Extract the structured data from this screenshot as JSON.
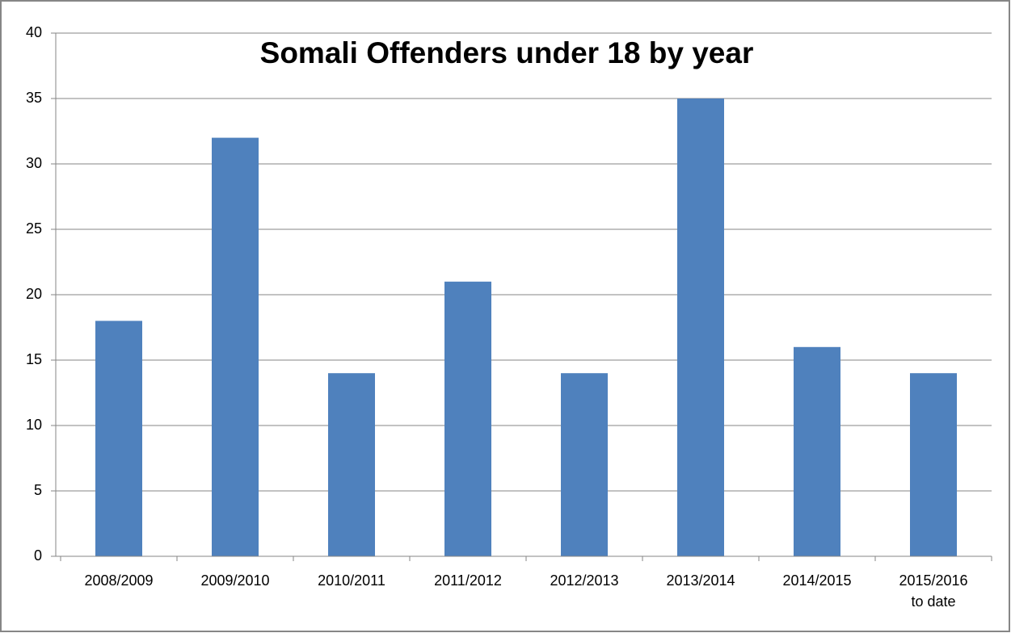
{
  "chart_data": {
    "type": "bar",
    "title": "Somali Offenders under 18 by year",
    "categories": [
      "2008/2009",
      "2009/2010",
      "2010/2011",
      "2011/2012",
      "2012/2013",
      "2013/2014",
      "2014/2015",
      "2015/2016\nto date"
    ],
    "values": [
      18,
      32,
      14,
      21,
      14,
      35,
      16,
      14
    ],
    "color": "#4f81bd",
    "ylim": [
      0,
      40
    ],
    "yticks": [
      0,
      5,
      10,
      15,
      20,
      25,
      30,
      35,
      40
    ],
    "grid": true
  }
}
